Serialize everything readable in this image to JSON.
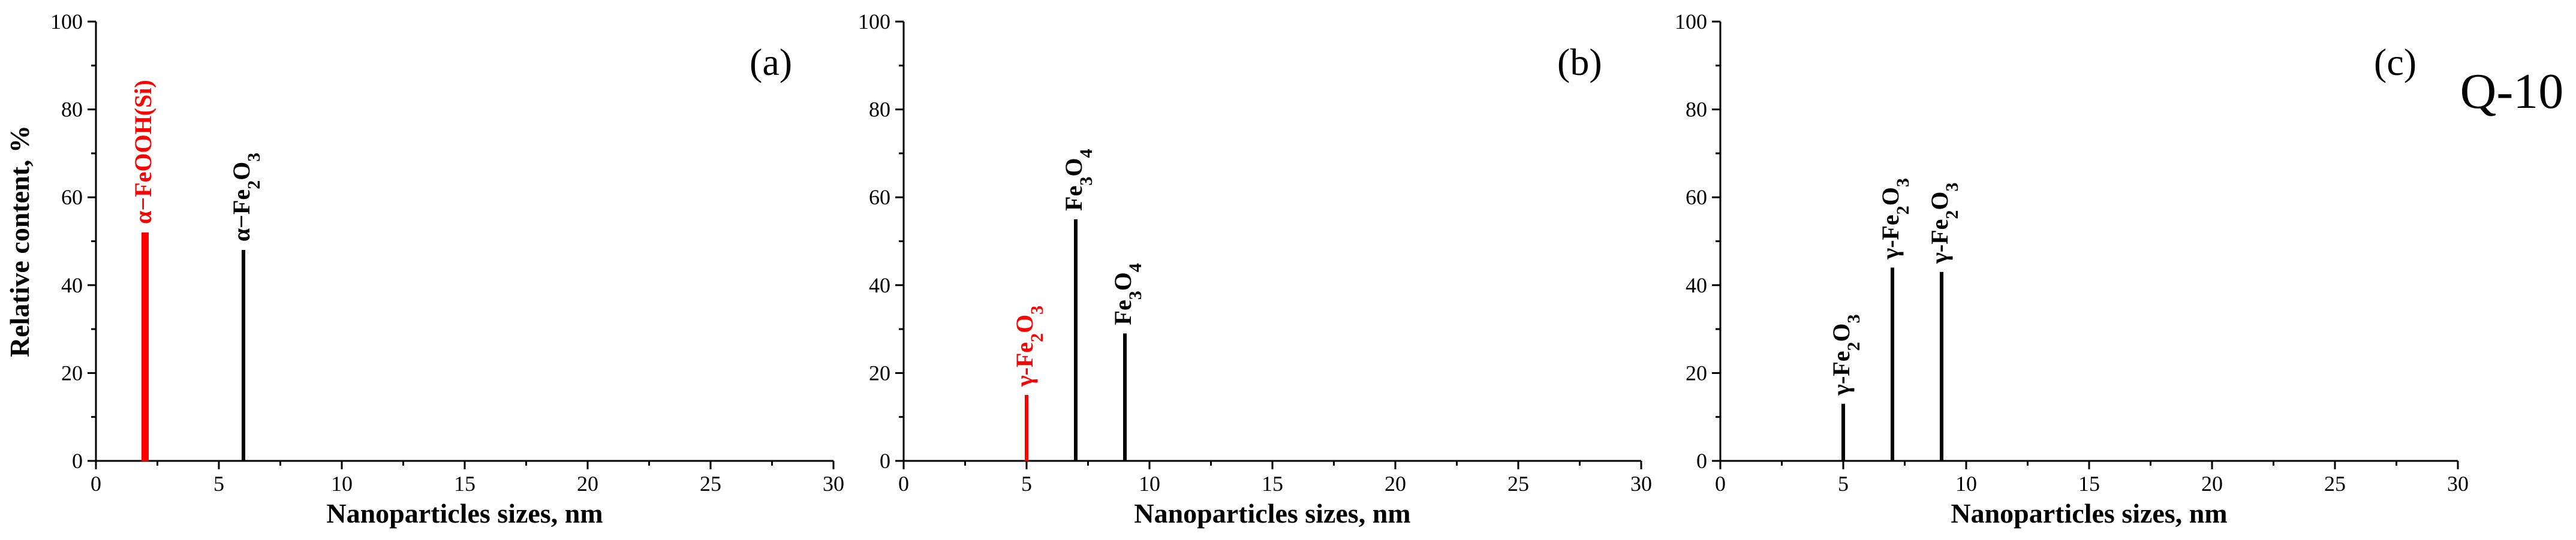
{
  "chart_data": [
    {
      "type": "bar",
      "panel_label": "(a)",
      "xlabel": "Nanoparticles sizes, nm",
      "ylabel": "Relative content, %",
      "xlim": [
        0,
        30
      ],
      "ylim": [
        0,
        100
      ],
      "xticks": [
        0,
        5,
        10,
        15,
        20,
        25,
        30
      ],
      "yticks": [
        0,
        20,
        40,
        60,
        80,
        100
      ],
      "bars": [
        {
          "x": 2,
          "value": 52,
          "label": "α−FeOOH(Si)",
          "color": "#ff0000"
        },
        {
          "x": 6,
          "value": 48,
          "label": "α−Fe2O3",
          "color": "#000000"
        }
      ]
    },
    {
      "type": "bar",
      "panel_label": "(b)",
      "xlabel": "Nanoparticles sizes, nm",
      "ylabel": "",
      "xlim": [
        0,
        30
      ],
      "ylim": [
        0,
        100
      ],
      "xticks": [
        0,
        5,
        10,
        15,
        20,
        25,
        30
      ],
      "yticks": [
        0,
        20,
        40,
        60,
        80,
        100
      ],
      "bars": [
        {
          "x": 5,
          "value": 15,
          "label": "γ-Fe2O3",
          "color": "#ff0000"
        },
        {
          "x": 7,
          "value": 55,
          "label": "Fe3O4",
          "color": "#000000"
        },
        {
          "x": 9,
          "value": 29,
          "label": "Fe3O4",
          "color": "#000000"
        }
      ]
    },
    {
      "type": "bar",
      "panel_label": "(c)",
      "extra_label": "Q-10",
      "xlabel": "Nanoparticles sizes, nm",
      "ylabel": "",
      "xlim": [
        0,
        30
      ],
      "ylim": [
        0,
        100
      ],
      "xticks": [
        0,
        5,
        10,
        15,
        20,
        25,
        30
      ],
      "yticks": [
        0,
        20,
        40,
        60,
        80,
        100
      ],
      "bars": [
        {
          "x": 5,
          "value": 13,
          "label": "γ-Fe2O3",
          "color": "#000000"
        },
        {
          "x": 7,
          "value": 44,
          "label": "γ-Fe2O3",
          "color": "#000000"
        },
        {
          "x": 9,
          "value": 43,
          "label": "γ-Fe2O3",
          "color": "#000000"
        }
      ]
    }
  ]
}
